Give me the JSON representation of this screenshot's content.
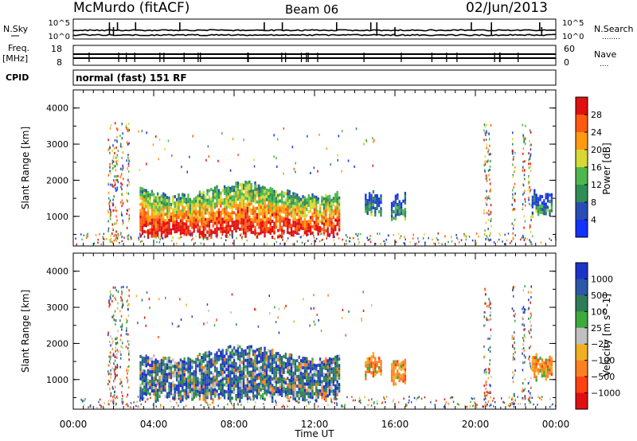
{
  "header": {
    "title": "McMurdo (fitACF)",
    "beam": "Beam 06",
    "date": "02/Jun/2013"
  },
  "noise_panel": {
    "left_label": "N.Sky",
    "right_label": "N.Search",
    "right_sub": "........",
    "ticks_left": [
      "10^5",
      "10^0"
    ],
    "ticks_right": [
      "10^5",
      "10^0"
    ]
  },
  "freq_panel": {
    "left_label_1": "Freq.",
    "left_label_2": "[MHz]",
    "right_label": "Nave",
    "right_sub": "....",
    "ticks_left": [
      "18",
      "8"
    ],
    "ticks_right": [
      "60",
      "0"
    ]
  },
  "cpid": {
    "label": "CPID",
    "value": "normal (fast) 151 RF"
  },
  "time_axis": {
    "label": "Time UT",
    "ticks": [
      "00:00",
      "04:00",
      "08:00",
      "12:00",
      "16:00",
      "20:00",
      "00:00"
    ]
  },
  "range_axis": {
    "label": "Slant Range [km]",
    "ticks": [
      "1000",
      "2000",
      "3000",
      "4000"
    ]
  },
  "chart_data": [
    {
      "type": "heatmap",
      "name": "power",
      "xlabel": "Time UT",
      "ylabel": "Slant Range [km]",
      "x_range_hours": [
        0,
        24
      ],
      "y_range_km": [
        180,
        4500
      ],
      "colorbar": {
        "label": "Power [dB]",
        "ticks": [
          "4",
          "8",
          "12",
          "16",
          "20",
          "24",
          "28"
        ],
        "colors": [
          "#1431ff",
          "#2a4cb5",
          "#2f8e55",
          "#4fb84c",
          "#d8d834",
          "#ff9a10",
          "#ff5a10",
          "#e01010"
        ],
        "range": [
          0,
          32
        ]
      },
      "regions": [
        {
          "t0": 3.3,
          "t1": 13.2,
          "r0": 420,
          "r1": 2000,
          "level": "high"
        },
        {
          "t0": 14.5,
          "t1": 15.3,
          "r0": 1000,
          "r1": 1800,
          "level": "low"
        },
        {
          "t0": 15.8,
          "t1": 16.5,
          "r0": 850,
          "r1": 1700,
          "level": "low"
        },
        {
          "t0": 22.8,
          "t1": 23.8,
          "r0": 1000,
          "r1": 1800,
          "level": "low"
        }
      ]
    },
    {
      "type": "heatmap",
      "name": "velocity",
      "xlabel": "Time UT",
      "ylabel": "Slant Range [km]",
      "x_range_hours": [
        0,
        24
      ],
      "y_range_km": [
        180,
        4500
      ],
      "colorbar": {
        "label": "Velocity [m s^-1]",
        "ticks": [
          "1000",
          "500",
          "100",
          "25",
          "−25",
          "−100",
          "−500",
          "−1000"
        ],
        "colors": [
          "#1c33c8",
          "#2d57a8",
          "#2e7d58",
          "#3caa3c",
          "#c0c0c0",
          "#f0b020",
          "#ff8020",
          "#ff4010",
          "#e01010"
        ]
      },
      "regions": [
        {
          "t0": 3.3,
          "t1": 13.2,
          "r0": 420,
          "r1": 2000
        },
        {
          "t0": 14.5,
          "t1": 15.3,
          "r0": 1000,
          "r1": 1800
        },
        {
          "t0": 15.8,
          "t1": 16.5,
          "r0": 850,
          "r1": 1700
        },
        {
          "t0": 22.8,
          "t1": 23.8,
          "r0": 1000,
          "r1": 1800
        }
      ]
    }
  ]
}
